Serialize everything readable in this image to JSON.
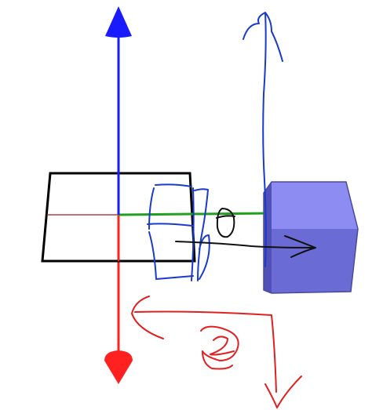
{
  "colors": {
    "background": "#ffffff",
    "axis_z": "#1a1aff",
    "axis_x": "#ff2020",
    "axis_y": "#1fa01f",
    "plane_outline": "#000000",
    "plane_axis_x_back": "#b04040",
    "cube_front": "#6b6bd6",
    "cube_top": "#8c8cf2",
    "cube_side": "#5050b8",
    "cube_edge": "#4a4a9a",
    "pen_blue": "#1a3acc",
    "pen_red": "#e02020",
    "pen_black": "#111111"
  },
  "icons": {
    "z_arrowhead": "cone-arrowhead-icon",
    "x_arrowhead": "cone-arrowhead-icon"
  },
  "annotations": {
    "sketch_digits": [
      "0",
      "2"
    ]
  }
}
